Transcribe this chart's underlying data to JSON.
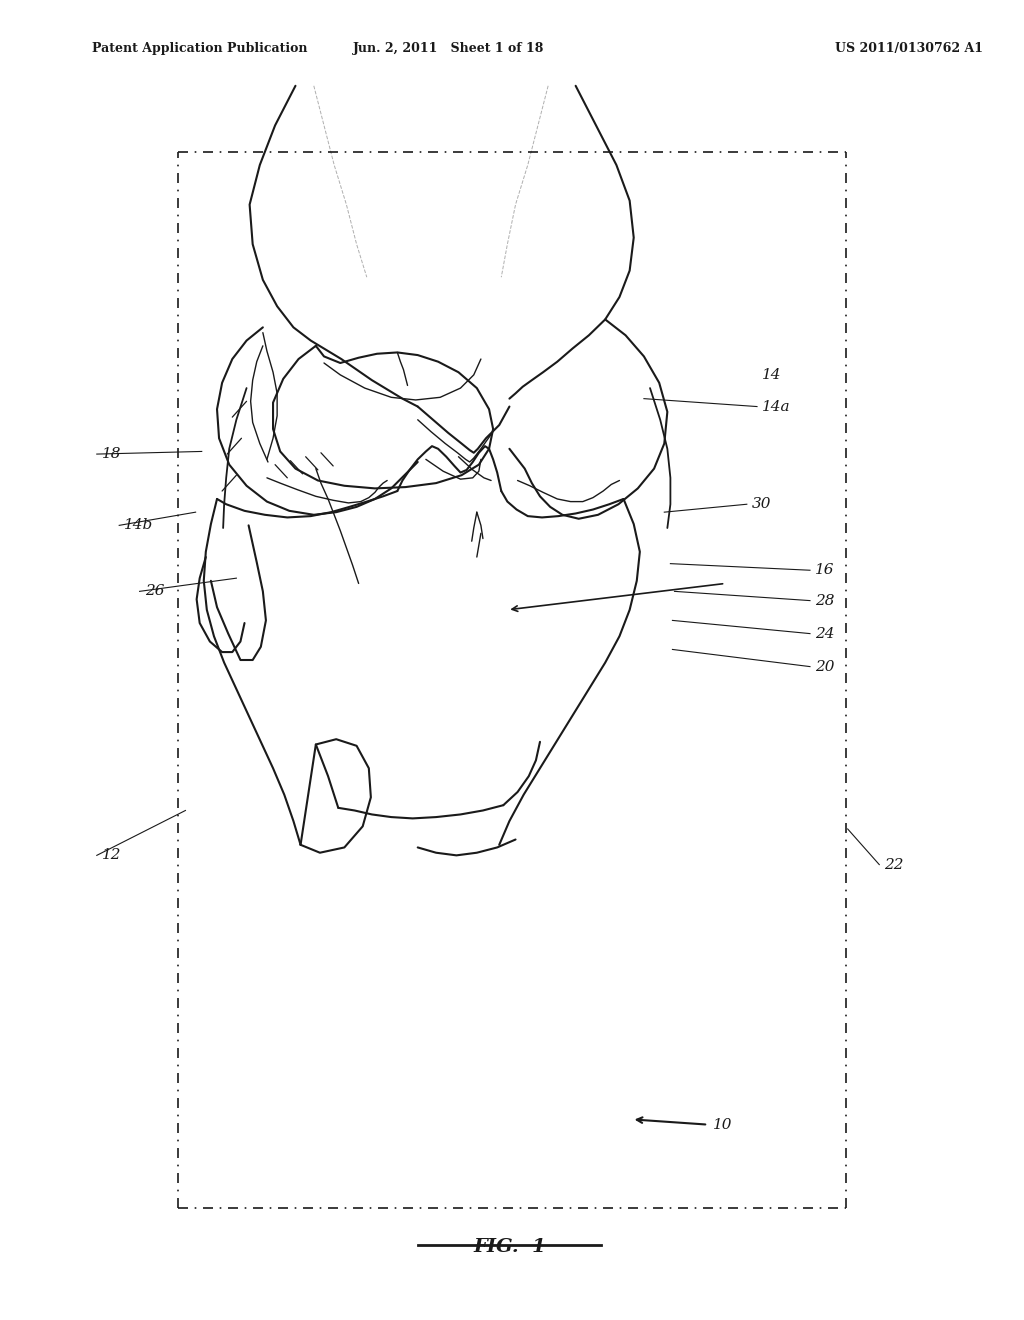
{
  "background_color": "#ffffff",
  "header_left": "Patent Application Publication",
  "header_mid": "Jun. 2, 2011   Sheet 1 of 18",
  "header_right": "US 2011/0130762 A1",
  "figure_label": "FIG.  1",
  "text_color": "#1a1a1a",
  "line_color": "#1a1a1a"
}
